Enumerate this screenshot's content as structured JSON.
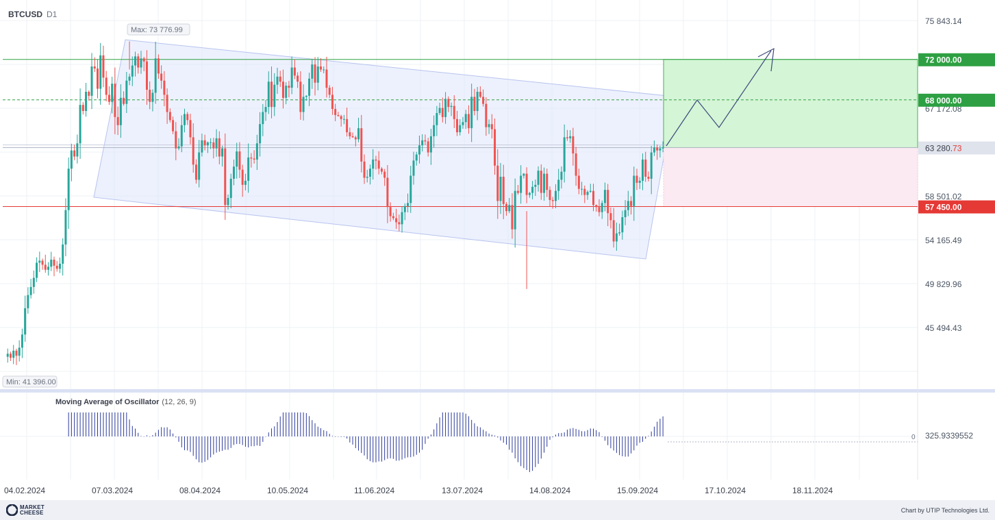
{
  "header": {
    "symbol": "BTCUSD",
    "timeframe": "D1"
  },
  "indicator": {
    "name": "Moving Average of Oscillator",
    "params": "(12, 26, 9)"
  },
  "footer": {
    "logo_line1": "MARKET",
    "logo_line2": "CHEESE",
    "credit": "Chart by UTIP Technologies Ltd."
  },
  "colors": {
    "bull": "#26a69a",
    "bear": "#ef5350",
    "green_level": "#2ea043",
    "red_level": "#e53935",
    "channel": "#dfe5fb",
    "osc": "#2b3a9a"
  },
  "chart_data": {
    "type": "candlestick",
    "symbol": "BTCUSD",
    "timeframe": "D1",
    "price_axis_ticks": [
      75843.14,
      58501.02,
      54165.49,
      49829.96,
      45494.43
    ],
    "date_axis_ticks": [
      "04.02.2024",
      "07.03.2024",
      "08.04.2024",
      "10.05.2024",
      "11.06.2024",
      "13.07.2024",
      "14.08.2024",
      "15.09.2024",
      "17.10.2024",
      "18.11.2024"
    ],
    "price_min_label": "Min: 41 396.00",
    "price_max_label": "Max: 73 776.99",
    "current_price": {
      "main": "63 280.",
      "tail": "73",
      "value": 63280.73
    },
    "levels": [
      {
        "label": "72 000.00",
        "value": 72000,
        "color": "green"
      },
      {
        "label": "68 000.00",
        "value": 68000,
        "color": "green",
        "dashed": true
      },
      {
        "label": "57 450.00",
        "value": 57450,
        "color": "red"
      }
    ],
    "hidden_tick_label": "67 172.08",
    "oscillator_value_label": "325.9339552",
    "oscillator_zero_label": "0",
    "price_path_daily": [
      42600,
      42900,
      42500,
      43200,
      42700,
      43500,
      44800,
      47400,
      48700,
      49500,
      50400,
      51900,
      52100,
      51700,
      51200,
      51500,
      52200,
      51600,
      51300,
      51800,
      53700,
      57100,
      61200,
      63000,
      62400,
      63700,
      67500,
      66900,
      68800,
      68400,
      71300,
      71100,
      69100,
      72400,
      70200,
      68500,
      67800,
      69600,
      66300,
      65500,
      68200,
      67600,
      69900,
      70300,
      71400,
      72300,
      71200,
      72100,
      71800,
      69000,
      67800,
      68700,
      72100,
      70600,
      69900,
      68500,
      66800,
      66000,
      64900,
      63200,
      63400,
      65500,
      66600,
      66000,
      64300,
      61600,
      60100,
      62800,
      64000,
      63500,
      63800,
      63800,
      63200,
      64200,
      62400,
      63200,
      57600,
      58300,
      60200,
      61400,
      62900,
      61100,
      59600,
      60000,
      62300,
      62200,
      62100,
      63700,
      65600,
      66800,
      67300,
      69800,
      67300,
      69500,
      70300,
      69800,
      68200,
      69400,
      69200,
      71200,
      70400,
      69800,
      66800,
      68300,
      68400,
      70100,
      71500,
      69700,
      71300,
      71000,
      71000,
      69200,
      68500,
      67100,
      66500,
      66400,
      66100,
      66100,
      64800,
      64400,
      64300,
      64100,
      65200,
      61900,
      60300,
      60400,
      61200,
      62100,
      62000,
      61200,
      60900,
      60300,
      57400,
      56500,
      56300,
      55900,
      55700,
      56900,
      57500,
      57800,
      60500,
      62000,
      62600,
      63500,
      64000,
      63900,
      62800,
      64400,
      65500,
      66700,
      67200,
      66300,
      68100,
      67300,
      67400,
      66100,
      64800,
      65500,
      65800,
      66600,
      65200,
      68300,
      66900,
      68800,
      68300,
      67600,
      65300,
      65600,
      65100,
      61500,
      58000,
      60400,
      57700,
      57000,
      57600,
      55200,
      59000,
      58800,
      60500,
      60700,
      58600,
      58800,
      59400,
      59600,
      61000,
      58800,
      60700,
      59100,
      58100,
      58000,
      59000,
      60100,
      60900,
      64300,
      64200,
      64400,
      62700,
      60500,
      59200,
      59200,
      58600,
      58900,
      59000,
      57600,
      57400,
      56900,
      57800,
      59100,
      56800,
      56100,
      54000,
      54800,
      54900,
      56400,
      57100,
      58000,
      57500,
      60500,
      59800,
      60000,
      62100,
      60400,
      60200,
      62800,
      63300,
      63000,
      63200,
      63300
    ]
  }
}
